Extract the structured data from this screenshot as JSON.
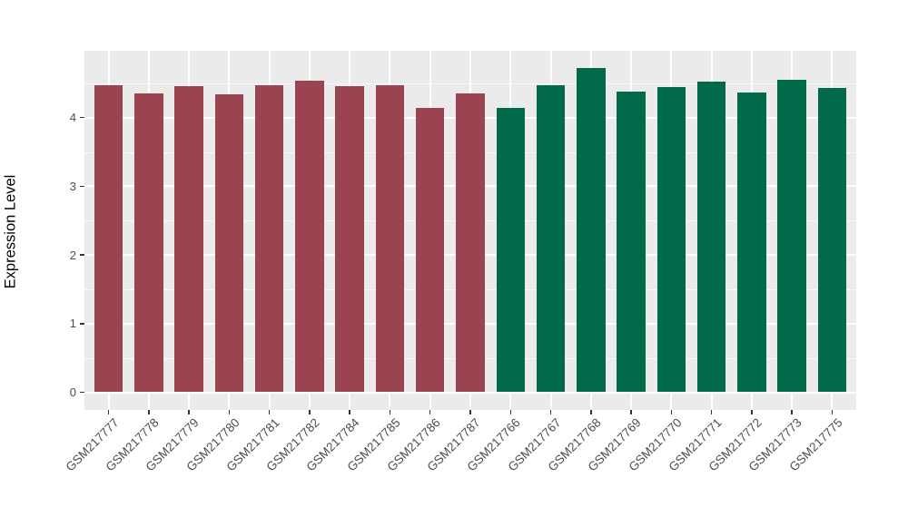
{
  "chart_data": {
    "type": "bar",
    "title": "",
    "xlabel": "",
    "ylabel": "Expression Level",
    "categories": [
      "GSM217777",
      "GSM217778",
      "GSM217779",
      "GSM217780",
      "GSM217781",
      "GSM217782",
      "GSM217784",
      "GSM217785",
      "GSM217786",
      "GSM217787",
      "GSM217766",
      "GSM217767",
      "GSM217768",
      "GSM217769",
      "GSM217770",
      "GSM217771",
      "GSM217772",
      "GSM217773",
      "GSM217775"
    ],
    "values": [
      4.47,
      4.35,
      4.46,
      4.34,
      4.47,
      4.54,
      4.46,
      4.47,
      4.14,
      4.35,
      4.14,
      4.47,
      4.72,
      4.38,
      4.45,
      4.53,
      4.37,
      4.55,
      4.43
    ],
    "bar_colors": [
      "#9A4451",
      "#9A4451",
      "#9A4451",
      "#9A4451",
      "#9A4451",
      "#9A4451",
      "#9A4451",
      "#9A4451",
      "#9A4451",
      "#9A4451",
      "#006A4A",
      "#006A4A",
      "#006A4A",
      "#006A4A",
      "#006A4A",
      "#006A4A",
      "#006A4A",
      "#006A4A",
      "#006A4A"
    ],
    "group_split": {
      "first_group_count": 10,
      "second_group_count": 9,
      "first_group_color": "#9A4451",
      "second_group_color": "#006A4A"
    },
    "yticks": [
      0,
      1,
      2,
      3,
      4
    ],
    "ylim": [
      0,
      4.97
    ],
    "grid": true,
    "legend": "none",
    "panel_bg": "#EBEBEB",
    "gridline_major_color": "#FFFFFF",
    "tick_label_color": "#4D4D4D",
    "axis_title_color": "#000000"
  }
}
